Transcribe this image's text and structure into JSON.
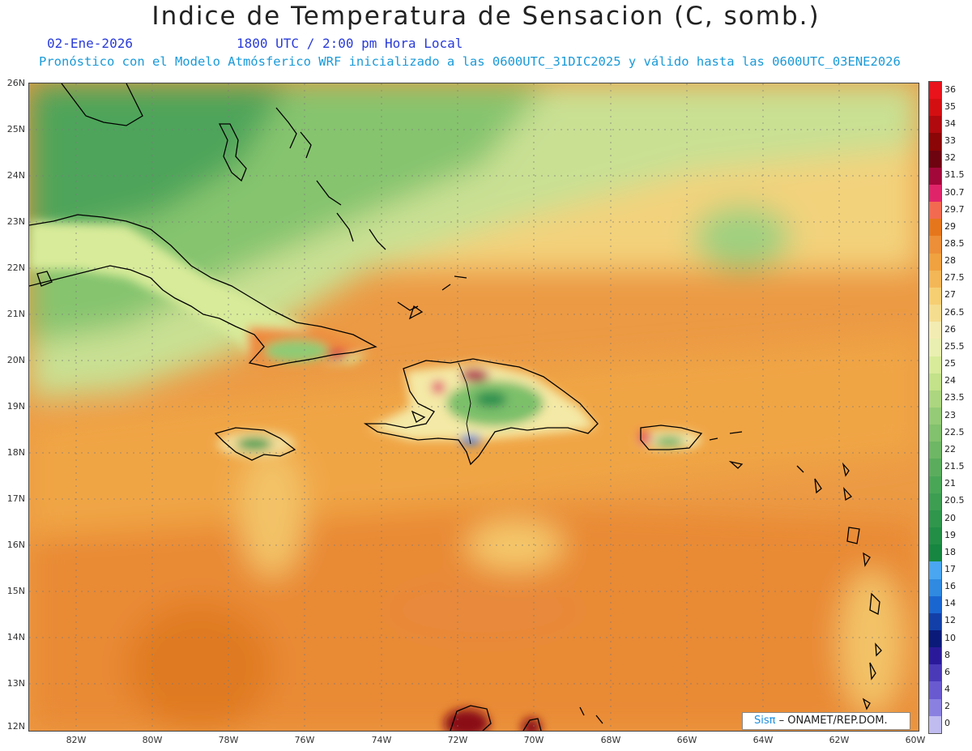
{
  "header": {
    "title": "Indice de Temperatura de Sensacion (C, somb.)",
    "date": "02-Ene-2026",
    "time": "1800 UTC / 2:00 pm Hora Local",
    "model_line": "Pronóstico con el Modelo Atmósferico WRF inicializado a las 0600UTC_31DIC2025 y válido hasta las  0600UTC_03ENE2026"
  },
  "map": {
    "lat_labels": [
      "26N",
      "25N",
      "24N",
      "23N",
      "22N",
      "21N",
      "20N",
      "19N",
      "18N",
      "17N",
      "16N",
      "15N",
      "14N",
      "13N",
      "12N"
    ],
    "lon_labels": [
      "82W",
      "80W",
      "78W",
      "76W",
      "74W",
      "72W",
      "70W",
      "68W",
      "66W",
      "64W",
      "62W",
      "60W"
    ],
    "colorbar": {
      "labels": [
        "36",
        "35",
        "34",
        "33",
        "32",
        "31.5",
        "30.7",
        "29.7",
        "29",
        "28.5",
        "28",
        "27.5",
        "27",
        "26.5",
        "26",
        "25.5",
        "25",
        "24",
        "23.5",
        "23",
        "22.5",
        "22",
        "21.5",
        "21",
        "20.5",
        "20",
        "19",
        "18",
        "17",
        "16",
        "14",
        "12",
        "10",
        "8",
        "6",
        "4",
        "2",
        "0"
      ],
      "colors": [
        "#e8131b",
        "#d40f12",
        "#b00a0e",
        "#8b0606",
        "#6e0410",
        "#a3083a",
        "#e0246a",
        "#f26a50",
        "#e6761c",
        "#ec8f38",
        "#f0a240",
        "#f3b757",
        "#f6cf73",
        "#f5dd90",
        "#f3ecb2",
        "#e9efb0",
        "#d8eb9a",
        "#c3e28a",
        "#acd67f",
        "#95cb76",
        "#82c16d",
        "#6eb764",
        "#5bad5d",
        "#4aa657",
        "#3d9e52",
        "#2f964c",
        "#238e46",
        "#178640",
        "#4aa6f0",
        "#2f8ae0",
        "#1a66d0",
        "#1240a8",
        "#0a1a78",
        "#2a1a9a",
        "#4a3ab8",
        "#6a5ad0",
        "#8a80e0",
        "#c0bcf0"
      ]
    },
    "credit_logo": "Sisπ",
    "credit_text": "– ONAMET/REP.DOM."
  }
}
